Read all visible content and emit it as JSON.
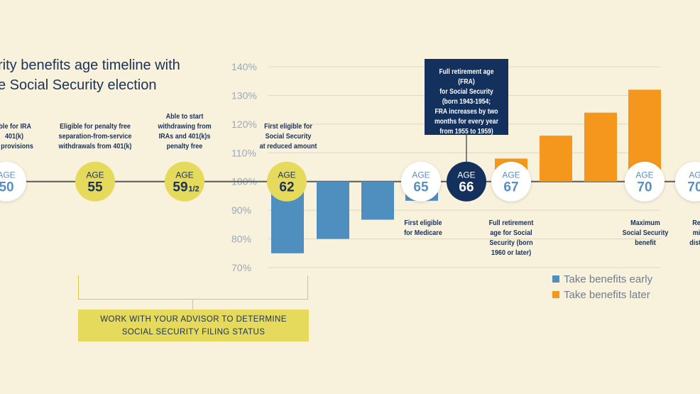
{
  "title_lines": [
    "rity benefits age timeline with",
    "e Social Security election"
  ],
  "colors": {
    "background": "#f8f1dc",
    "navy": "#13315c",
    "yellow_circle": "#e5da5c",
    "early_blue": "#4f8fc0",
    "later_orange": "#f4971c",
    "white_circle_text": "#5b8fbd"
  },
  "chart_data": {
    "type": "bar",
    "title": "",
    "xlabel": "",
    "ylabel": "",
    "ylim": [
      70,
      140
    ],
    "baseline": 100,
    "yticks": [
      "70%",
      "80%",
      "90%",
      "100%",
      "110%",
      "120%",
      "130%",
      "140%"
    ],
    "grid": true,
    "legend_position": "bottom-right",
    "series": [
      {
        "name": "Take benefits early",
        "color": "#4f8fc0",
        "points": [
          {
            "age": "62",
            "value": 75
          },
          {
            "age": "63",
            "value": 80
          },
          {
            "age": "64",
            "value": 86.7
          },
          {
            "age": "65",
            "value": 93.3
          }
        ]
      },
      {
        "name": "Take benefits later",
        "color": "#f4971c",
        "points": [
          {
            "age": "67",
            "value": 108
          },
          {
            "age": "68",
            "value": 116
          },
          {
            "age": "69",
            "value": 124
          },
          {
            "age": "70",
            "value": 132
          }
        ]
      }
    ]
  },
  "ages": [
    {
      "top": "AGE",
      "main": "50",
      "style": "white"
    },
    {
      "top": "AGE",
      "main": "55",
      "style": "yellow"
    },
    {
      "top": "AGE",
      "main": "59",
      "frac": "1/2",
      "style": "yellow"
    },
    {
      "top": "AGE",
      "main": "62",
      "style": "yellow"
    },
    {
      "top": "AGE",
      "main": "65",
      "style": "white"
    },
    {
      "top": "AGE",
      "main": "66",
      "style": "navy"
    },
    {
      "top": "AGE",
      "main": "67",
      "style": "white"
    },
    {
      "top": "AGE",
      "main": "70",
      "style": "white"
    },
    {
      "top": "AG",
      "main": "70",
      "style": "white"
    }
  ],
  "notes": {
    "age50": [
      "ible for IRA",
      "401(k)",
      "p provisions"
    ],
    "age55": [
      "Eligible for penalty free",
      "separation-from-service",
      "withdrawals from 401(k)"
    ],
    "age59": [
      "Able to start",
      "withdrawing from",
      "IRAs and 401(k)s",
      "penalty free"
    ],
    "age62": [
      "First eligible for",
      "Social Security",
      "at reduced amount"
    ],
    "age65": [
      "First eligible",
      "for Medicare"
    ],
    "age67": [
      "Full retirement",
      "age for Social",
      "Security (born",
      "1960 or later)"
    ],
    "age70": [
      "Maximum",
      "Social Security",
      "benefit"
    ],
    "age70b": [
      "Re",
      "mi",
      "distr"
    ]
  },
  "fra_box_lines": [
    "Full retirement age (FRA)",
    "for Social Security",
    "(born 1943-1954;",
    "FRA increases by two",
    "months for every year",
    "from 1955 to 1959)"
  ],
  "advisor_lines": [
    "WORK WITH YOUR ADVISOR TO DETERMINE",
    "SOCIAL SECURITY FILING STATUS"
  ],
  "legend": [
    {
      "label": "Take benefits early",
      "color": "#4f8fc0"
    },
    {
      "label": "Take benefits later",
      "color": "#f4971c"
    }
  ]
}
